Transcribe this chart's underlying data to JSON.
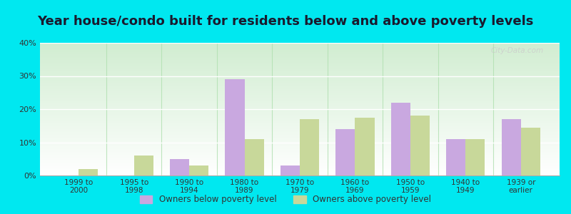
{
  "title": "Year house/condo built for residents below and above poverty levels",
  "categories": [
    "1999 to\n2000",
    "1995 to\n1998",
    "1990 to\n1994",
    "1980 to\n1989",
    "1970 to\n1979",
    "1960 to\n1969",
    "1950 to\n1959",
    "1940 to\n1949",
    "1939 or\nearlier"
  ],
  "below_poverty": [
    0.0,
    0.0,
    5.0,
    29.0,
    3.0,
    14.0,
    22.0,
    11.0,
    17.0
  ],
  "above_poverty": [
    2.0,
    6.0,
    3.0,
    11.0,
    17.0,
    17.5,
    18.0,
    11.0,
    14.5
  ],
  "below_color": "#c9a8e0",
  "above_color": "#c8d89a",
  "outer_background": "#00e8f0",
  "ylim": [
    0,
    40
  ],
  "yticks": [
    0,
    10,
    20,
    30,
    40
  ],
  "legend_below": "Owners below poverty level",
  "legend_above": "Owners above poverty level",
  "title_fontsize": 13,
  "bar_width": 0.35,
  "grid_color": "#e8f0e8",
  "watermark": "City-Data.com"
}
